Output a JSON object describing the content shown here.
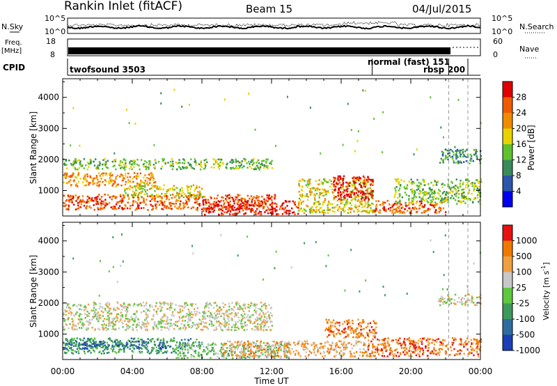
{
  "header": {
    "station": "Rankin Inlet (fitACF)",
    "beam": "Beam 15",
    "date": "04/Jul/2015"
  },
  "status_panels": {
    "nsky_label": "N.Sky",
    "nsearch_label": "N.Search",
    "noise_ticks": [
      "10^5",
      "10^0"
    ],
    "freq_label_1": "Freq.",
    "freq_label_2": "[MHz]",
    "freq_ticks": [
      "18",
      "8"
    ],
    "nave_label": "Nave",
    "nave_ticks": [
      "60",
      "0"
    ],
    "cpid_label": "CPID",
    "cpid_segments": [
      {
        "label": "twofsound 3503",
        "start": 0.0,
        "end": 17.5
      },
      {
        "label": "normal (fast) 151",
        "start": 17.5,
        "end": 21.9
      },
      {
        "label": "rbsp",
        "start": 21.9,
        "end": 23.0
      },
      {
        "label": "200",
        "start": 23.0,
        "end": 24.0
      }
    ]
  },
  "chart_data": [
    {
      "type": "heatmap",
      "panel": "power",
      "ylabel": "Slant Range [km]",
      "ylim": [
        180,
        4600
      ],
      "yticks": [
        "1000",
        "2000",
        "3000",
        "4000"
      ],
      "colorbar_label": "Power [dB]",
      "colorbar_ticks": [
        "4",
        "8",
        "12",
        "16",
        "20",
        "24",
        "28"
      ],
      "colorbar_range": [
        0,
        32
      ],
      "colors": [
        "#0000ee",
        "#2b55a8",
        "#3a8a5a",
        "#5cc230",
        "#e8d200",
        "#f08c00",
        "#f05a00",
        "#e00000"
      ],
      "scatter_regions": [
        {
          "t0": 0.0,
          "t1": 12.2,
          "r0": 400,
          "r1": 900,
          "level": 6
        },
        {
          "t0": 0.0,
          "t1": 5.3,
          "r0": 1150,
          "r1": 1600,
          "level": 5
        },
        {
          "t0": 0.0,
          "t1": 12.0,
          "r0": 1700,
          "r1": 2050,
          "level": 3
        },
        {
          "t0": 3.5,
          "t1": 8.0,
          "r0": 800,
          "r1": 1200,
          "level": 4
        },
        {
          "t0": 8.0,
          "t1": 13.5,
          "r0": 250,
          "r1": 700,
          "level": 7
        },
        {
          "t0": 13.5,
          "t1": 17.8,
          "r0": 300,
          "r1": 1400,
          "level": 4
        },
        {
          "t0": 15.5,
          "t1": 17.8,
          "r0": 700,
          "r1": 1500,
          "level": 7
        },
        {
          "t0": 17.8,
          "t1": 22.0,
          "r0": 300,
          "r1": 700,
          "level": 6
        },
        {
          "t0": 19.0,
          "t1": 24.0,
          "r0": 600,
          "r1": 1400,
          "level": 3
        },
        {
          "t0": 21.5,
          "t1": 24.0,
          "r0": 1900,
          "r1": 2350,
          "level": 2
        }
      ]
    },
    {
      "type": "heatmap",
      "panel": "velocity",
      "ylabel": "Slant Range [km]",
      "ylim": [
        180,
        4600
      ],
      "yticks": [
        "1000",
        "2000",
        "3000",
        "4000"
      ],
      "colorbar_label": "Velocity [m s^-1]",
      "colorbar_ticks": [
        "1000",
        "500",
        "100",
        "25",
        "-25",
        "-100",
        "-500",
        "-1000"
      ],
      "colors": [
        "#1a3fb8",
        "#2e6e9e",
        "#3c9a5a",
        "#5ec840",
        "#c8c8c8",
        "#f0a040",
        "#f07800",
        "#e81010"
      ],
      "scatter_regions": [
        {
          "t0": 0.0,
          "t1": 12.0,
          "r0": 1150,
          "r1": 2050,
          "level": 4
        },
        {
          "t0": 0.0,
          "t1": 8.0,
          "r0": 400,
          "r1": 900,
          "level": 2
        },
        {
          "t0": 0.0,
          "t1": 6.0,
          "r0": 550,
          "r1": 800,
          "level": 1
        },
        {
          "t0": 6.5,
          "t1": 13.0,
          "r0": 250,
          "r1": 750,
          "level": 3
        },
        {
          "t0": 9.0,
          "t1": 17.5,
          "r0": 300,
          "r1": 800,
          "level": 5
        },
        {
          "t0": 15.0,
          "t1": 18.0,
          "r0": 900,
          "r1": 1500,
          "level": 6
        },
        {
          "t0": 17.5,
          "t1": 24.0,
          "r0": 300,
          "r1": 900,
          "level": 6
        },
        {
          "t0": 21.5,
          "t1": 24.0,
          "r0": 1950,
          "r1": 2300,
          "level": 4
        }
      ]
    }
  ],
  "xaxis": {
    "label": "Time UT",
    "ticks": [
      "00:00",
      "04:00",
      "08:00",
      "12:00",
      "16:00",
      "20:00",
      "00:00"
    ]
  }
}
